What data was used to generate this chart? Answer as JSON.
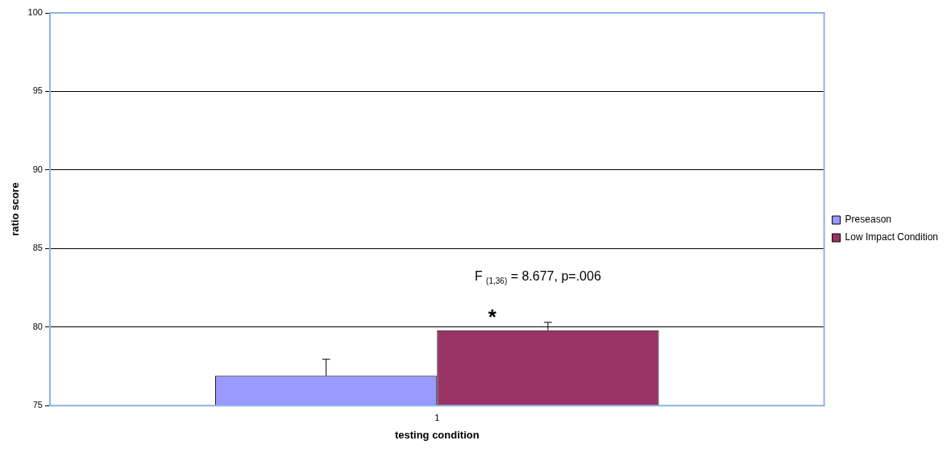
{
  "chart_data": {
    "type": "bar",
    "xlabel": "testing condition",
    "ylabel": "ratio score",
    "categories": [
      "1"
    ],
    "series": [
      {
        "name": "Preseason",
        "color": "#9999ff",
        "values": [
          76.9
        ],
        "errors": [
          [
            76.9,
            77.95
          ]
        ]
      },
      {
        "name": "Low Impact Condition",
        "color": "#993366",
        "values": [
          79.8
        ],
        "errors": [
          [
            79.8,
            80.3
          ]
        ]
      }
    ],
    "ylim": [
      75,
      100
    ],
    "yticks": [
      75,
      80,
      85,
      90,
      95,
      100
    ],
    "grid": "y",
    "legend": "right",
    "annotations": [
      "F $_{(1,36)}$ = 8.677, p=.006",
      "*"
    ]
  }
}
